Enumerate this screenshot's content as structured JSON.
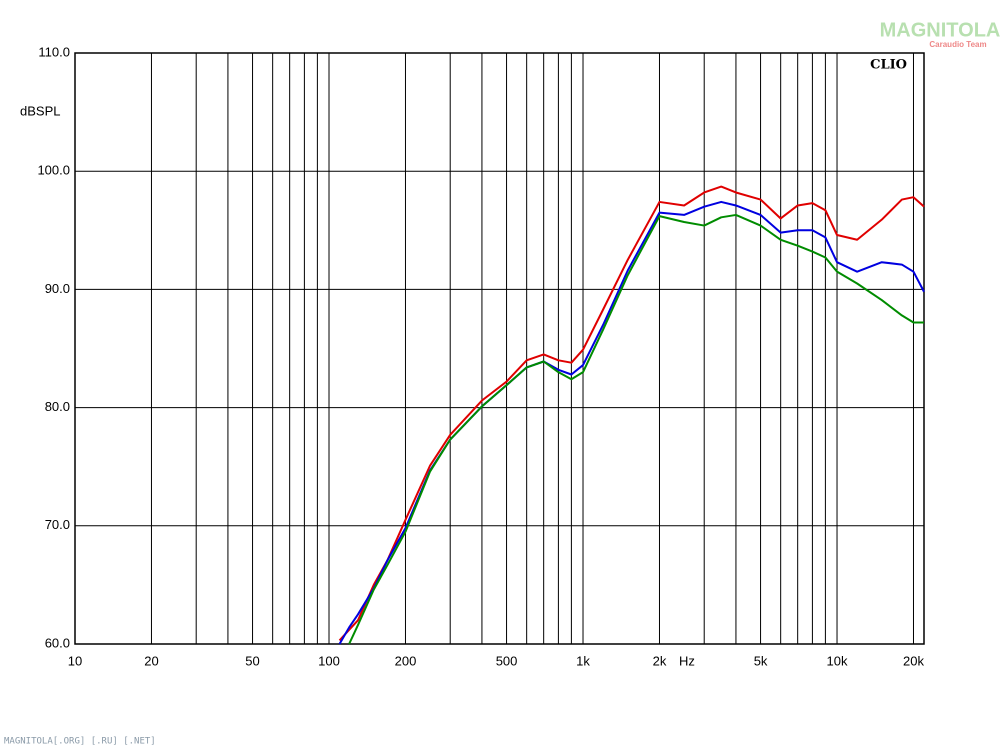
{
  "chart_data": {
    "type": "line",
    "y_label": "dBSPL",
    "x_label": "Hz",
    "annotation": "CLIO",
    "xscale": "log",
    "grid": true,
    "xlim": [
      10,
      22000
    ],
    "ylim": [
      60,
      110
    ],
    "xticks": [
      10,
      20,
      50,
      100,
      200,
      500,
      {
        "value": 1000,
        "label": "1k"
      },
      {
        "value": 2000,
        "label": "2k"
      },
      {
        "value": 5000,
        "label": "5k"
      },
      {
        "value": 10000,
        "label": "10k"
      },
      {
        "value": 20000,
        "label": "20k"
      }
    ],
    "xminorticks": [
      30,
      40,
      60,
      70,
      80,
      90,
      300,
      400,
      600,
      700,
      800,
      900,
      3000,
      4000,
      6000,
      7000,
      8000,
      9000
    ],
    "yticks": [
      {
        "value": 60,
        "label": "60.0"
      },
      {
        "value": 70,
        "label": "70.0"
      },
      {
        "value": 80,
        "label": "80.0"
      },
      {
        "value": 90,
        "label": "90.0"
      },
      {
        "value": 100,
        "label": "100.0"
      },
      {
        "value": 110,
        "label": "110.0"
      }
    ],
    "x": [
      110,
      120,
      130,
      150,
      170,
      200,
      250,
      300,
      400,
      500,
      600,
      700,
      800,
      900,
      1000,
      1200,
      1500,
      2000,
      2500,
      3000,
      3500,
      4000,
      5000,
      6000,
      7000,
      8000,
      9000,
      10000,
      12000,
      15000,
      18000,
      20000,
      22000
    ],
    "series": [
      {
        "color": "#e00000",
        "values": [
          60.3,
          61.2,
          62.0,
          65.0,
          67.1,
          70.5,
          75.1,
          77.7,
          80.6,
          82.2,
          84.0,
          84.5,
          84.0,
          83.8,
          84.9,
          88.3,
          92.5,
          97.4,
          97.1,
          98.2,
          98.7,
          98.2,
          97.6,
          96.0,
          97.1,
          97.3,
          96.7,
          94.6,
          94.2,
          95.9,
          97.6,
          97.8,
          97.0
        ]
      },
      {
        "color": "#0000e0",
        "values": [
          60.0,
          61.4,
          62.5,
          64.7,
          67.1,
          69.8,
          74.7,
          77.3,
          80.1,
          81.9,
          83.4,
          83.9,
          83.2,
          82.8,
          83.6,
          87.0,
          91.6,
          96.5,
          96.3,
          97.0,
          97.4,
          97.1,
          96.3,
          94.8,
          95.0,
          95.0,
          94.4,
          92.3,
          91.5,
          92.3,
          92.1,
          91.5,
          89.8
        ]
      },
      {
        "color": "#008c00",
        "values": [
          null,
          60.0,
          61.6,
          64.6,
          66.7,
          69.5,
          74.6,
          77.3,
          80.1,
          81.9,
          83.4,
          83.9,
          83.0,
          82.4,
          83.0,
          86.6,
          91.2,
          96.2,
          95.7,
          95.4,
          96.1,
          96.3,
          95.4,
          94.2,
          93.7,
          93.2,
          92.7,
          91.5,
          90.5,
          89.1,
          87.8,
          87.2,
          87.2
        ]
      }
    ],
    "watermark": [
      "MAGNITOLA",
      "Caraudio Team"
    ]
  },
  "footer": "MAGNITOLA[.ORG] [.RU] [.NET]"
}
